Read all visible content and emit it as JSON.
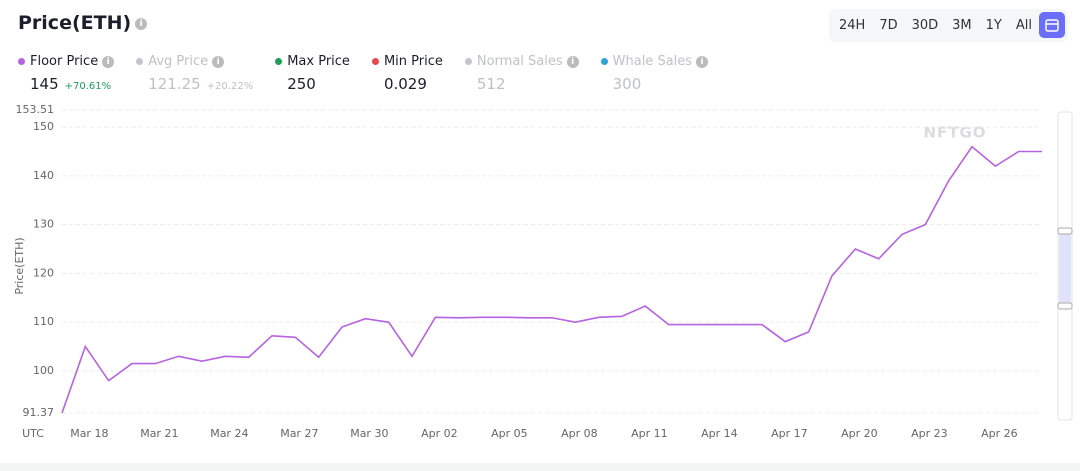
{
  "header": {
    "title": "Price(ETH)",
    "timeframes": [
      "24H",
      "7D",
      "30D",
      "3M",
      "1Y",
      "All"
    ]
  },
  "stats": [
    {
      "label": "Floor Price",
      "value": 145,
      "change": "+70.61%",
      "color": "#b563e0",
      "active": true
    },
    {
      "label": "Avg Price",
      "value": 121.25,
      "change": "+20.22%",
      "color": "#c4c4cc",
      "active": false
    },
    {
      "label": "Max Price",
      "value": 250,
      "color": "#1f9d55",
      "active": true
    },
    {
      "label": "Min Price",
      "value": 0.029,
      "color": "#e5484d",
      "active": true
    },
    {
      "label": "Normal Sales",
      "value": 512,
      "color": "#c4c4cc",
      "active": false
    },
    {
      "label": "Whale Sales",
      "value": 300,
      "color": "#2fa4d8",
      "active": false
    }
  ],
  "chart_data": {
    "type": "line",
    "y_label": "Price(ETH)",
    "x_prefix": "UTC",
    "watermark": "NFTGO",
    "categories": [
      null,
      "Mar 18",
      null,
      null,
      "Mar 21",
      null,
      null,
      "Mar 24",
      null,
      null,
      "Mar 27",
      null,
      null,
      "Mar 30",
      null,
      null,
      "Apr 02",
      null,
      null,
      "Apr 05",
      null,
      null,
      "Apr 08",
      null,
      null,
      "Apr 11",
      null,
      null,
      "Apr 14",
      null,
      null,
      "Apr 17",
      null,
      null,
      "Apr 20",
      null,
      null,
      "Apr 23",
      null,
      null,
      "Apr 26",
      null,
      null
    ],
    "series": [
      {
        "name": "Floor Price",
        "color": "#b563e0",
        "values": [
          91.37,
          105,
          98,
          101.5,
          101.5,
          103,
          102,
          103,
          102.8,
          107.2,
          106.9,
          102.8,
          109,
          110.7,
          110,
          103,
          111,
          110.9,
          111,
          111,
          110.9,
          110.9,
          110,
          111,
          111.2,
          113.3,
          109.5,
          109.5,
          109.5,
          109.5,
          109.5,
          106,
          108,
          119.5,
          125,
          123,
          128,
          130,
          139,
          146,
          142,
          145,
          145
        ]
      }
    ],
    "ylim": [
      91.37,
      153.51
    ],
    "yticks": [
      91.37,
      100,
      110,
      120,
      130,
      140,
      150,
      153.51
    ],
    "grid": true
  }
}
